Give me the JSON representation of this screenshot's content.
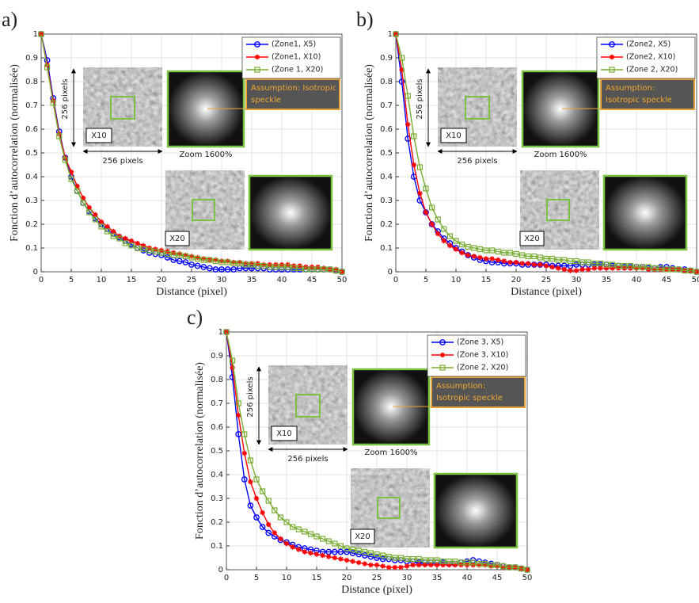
{
  "chart_data": [
    {
      "type": "line",
      "label": "a)",
      "xlabel": "Distance (pixel)",
      "ylabel": "Fonction d’autocorrelation (normalisée)",
      "xlim": [
        0,
        50
      ],
      "ylim": [
        0,
        1
      ],
      "xticks": [
        0,
        5,
        10,
        15,
        20,
        25,
        30,
        35,
        40,
        45,
        50
      ],
      "yticks": [
        0,
        0.1,
        0.2,
        0.3,
        0.4,
        0.5,
        0.6,
        0.7,
        0.8,
        0.9,
        1
      ],
      "grid": true,
      "legend": "upper right",
      "x": [
        0,
        1,
        2,
        3,
        4,
        5,
        6,
        7,
        8,
        9,
        10,
        11,
        12,
        13,
        14,
        15,
        16,
        17,
        18,
        19,
        20,
        21,
        22,
        23,
        24,
        25,
        26,
        27,
        28,
        29,
        30,
        31,
        32,
        33,
        34,
        35,
        36,
        37,
        38,
        39,
        40,
        41,
        42,
        43,
        44,
        45,
        46,
        47,
        48,
        49,
        50
      ],
      "series": [
        {
          "name": "(Zone1, X5)",
          "color": "#0000ff",
          "marker": "circle",
          "values": [
            1,
            0.89,
            0.73,
            0.59,
            0.48,
            0.4,
            0.34,
            0.29,
            0.255,
            0.225,
            0.2,
            0.18,
            0.16,
            0.145,
            0.13,
            0.115,
            0.1,
            0.09,
            0.08,
            0.075,
            0.07,
            0.06,
            0.05,
            0.045,
            0.04,
            0.03,
            0.025,
            0.02,
            0.015,
            0.01,
            0.01,
            0.01,
            0.01,
            0.015,
            0.015,
            0.015,
            0.015,
            0.015,
            0.01,
            0.01,
            0.01,
            0.01,
            0.01,
            0.01,
            0.01,
            0.01,
            0.01,
            0.01,
            0.01,
            0.005,
            0
          ]
        },
        {
          "name": "(Zone1, X10)",
          "color": "#ff0000",
          "marker": "asterisk",
          "values": [
            1,
            0.87,
            0.72,
            0.58,
            0.48,
            0.42,
            0.36,
            0.31,
            0.27,
            0.24,
            0.21,
            0.19,
            0.17,
            0.15,
            0.14,
            0.13,
            0.12,
            0.11,
            0.1,
            0.095,
            0.09,
            0.085,
            0.08,
            0.075,
            0.07,
            0.065,
            0.06,
            0.055,
            0.05,
            0.05,
            0.045,
            0.045,
            0.04,
            0.04,
            0.035,
            0.035,
            0.035,
            0.03,
            0.03,
            0.03,
            0.03,
            0.03,
            0.025,
            0.025,
            0.02,
            0.02,
            0.02,
            0.015,
            0.01,
            0.01,
            0
          ]
        },
        {
          "name": "(Zone 1, X20)",
          "color": "#77ac30",
          "marker": "square",
          "values": [
            1,
            0.86,
            0.71,
            0.57,
            0.47,
            0.39,
            0.34,
            0.29,
            0.25,
            0.22,
            0.19,
            0.17,
            0.15,
            0.14,
            0.12,
            0.11,
            0.1,
            0.095,
            0.09,
            0.085,
            0.08,
            0.075,
            0.07,
            0.07,
            0.065,
            0.06,
            0.055,
            0.05,
            0.05,
            0.045,
            0.04,
            0.04,
            0.035,
            0.035,
            0.03,
            0.03,
            0.025,
            0.025,
            0.02,
            0.02,
            0.02,
            0.02,
            0.015,
            0.015,
            0.01,
            0.01,
            0.01,
            0.01,
            0.01,
            0.005,
            0
          ]
        }
      ],
      "annotations": {
        "scale_vertical": "256 pixels",
        "scale_horizontal": "256 pixels",
        "mag_1": "X10",
        "mag_2": "X20",
        "zoom": "Zoom 1600%",
        "assumption": [
          "Assumption: Isotropic",
          "speckle"
        ]
      }
    },
    {
      "type": "line",
      "label": "b)",
      "xlabel": "Distance (pixel)",
      "ylabel": "Fonction d’autocorrelation (normalisée)",
      "xlim": [
        0,
        50
      ],
      "ylim": [
        0,
        1
      ],
      "xticks": [
        0,
        5,
        10,
        15,
        20,
        25,
        30,
        35,
        40,
        45,
        50
      ],
      "yticks": [
        0,
        0.1,
        0.2,
        0.3,
        0.4,
        0.5,
        0.6,
        0.7,
        0.8,
        0.9,
        1
      ],
      "grid": true,
      "legend": "upper right",
      "x": [
        0,
        1,
        2,
        3,
        4,
        5,
        6,
        7,
        8,
        9,
        10,
        11,
        12,
        13,
        14,
        15,
        16,
        17,
        18,
        19,
        20,
        21,
        22,
        23,
        24,
        25,
        26,
        27,
        28,
        29,
        30,
        31,
        32,
        33,
        34,
        35,
        36,
        37,
        38,
        39,
        40,
        41,
        42,
        43,
        44,
        45,
        46,
        47,
        48,
        49,
        50
      ],
      "series": [
        {
          "name": "(Zone2, X5)",
          "color": "#0000ff",
          "marker": "circle",
          "values": [
            1,
            0.8,
            0.56,
            0.4,
            0.3,
            0.25,
            0.2,
            0.17,
            0.14,
            0.12,
            0.1,
            0.085,
            0.07,
            0.06,
            0.05,
            0.045,
            0.04,
            0.04,
            0.035,
            0.035,
            0.035,
            0.03,
            0.03,
            0.03,
            0.03,
            0.03,
            0.025,
            0.025,
            0.025,
            0.025,
            0.03,
            0.03,
            0.03,
            0.03,
            0.03,
            0.03,
            0.025,
            0.025,
            0.02,
            0.02,
            0.02,
            0.02,
            0.015,
            0.015,
            0.02,
            0.02,
            0.015,
            0.01,
            0.01,
            0.005,
            0
          ]
        },
        {
          "name": "(Zone2, X10)",
          "color": "#ff0000",
          "marker": "asterisk",
          "values": [
            1,
            0.85,
            0.62,
            0.45,
            0.33,
            0.25,
            0.2,
            0.16,
            0.13,
            0.11,
            0.095,
            0.08,
            0.07,
            0.065,
            0.06,
            0.055,
            0.055,
            0.05,
            0.045,
            0.04,
            0.04,
            0.035,
            0.035,
            0.03,
            0.03,
            0.025,
            0.02,
            0.015,
            0.01,
            0.005,
            0.005,
            0.01,
            0.01,
            0.015,
            0.015,
            0.015,
            0.015,
            0.015,
            0.015,
            0.015,
            0.015,
            0.015,
            0.01,
            0.01,
            0.01,
            0.01,
            0.01,
            0.01,
            0.005,
            0.005,
            0
          ]
        },
        {
          "name": "(Zone 2, X20)",
          "color": "#77ac30",
          "marker": "square",
          "values": [
            1,
            0.9,
            0.74,
            0.57,
            0.44,
            0.35,
            0.27,
            0.22,
            0.18,
            0.15,
            0.13,
            0.115,
            0.105,
            0.1,
            0.095,
            0.09,
            0.09,
            0.085,
            0.08,
            0.08,
            0.075,
            0.07,
            0.065,
            0.065,
            0.06,
            0.055,
            0.055,
            0.05,
            0.05,
            0.045,
            0.045,
            0.04,
            0.04,
            0.035,
            0.035,
            0.03,
            0.03,
            0.025,
            0.025,
            0.025,
            0.02,
            0.02,
            0.02,
            0.015,
            0.015,
            0.01,
            0.01,
            0.01,
            0.005,
            0.005,
            0
          ]
        }
      ],
      "annotations": {
        "scale_vertical": "256 pixels",
        "scale_horizontal": "256 pixels",
        "mag_1": "X10",
        "mag_2": "X20",
        "zoom": "Zoom 1600%",
        "assumption": [
          "Assumption:",
          "Isotropic speckle"
        ]
      }
    },
    {
      "type": "line",
      "label": "c)",
      "xlabel": "Distance (pixel)",
      "ylabel": "Fonction d’autocorrelation (normalisée)",
      "xlim": [
        0,
        50
      ],
      "ylim": [
        0,
        1
      ],
      "xticks": [
        0,
        5,
        10,
        15,
        20,
        25,
        30,
        35,
        40,
        45,
        50
      ],
      "yticks": [
        0,
        0.1,
        0.2,
        0.3,
        0.4,
        0.5,
        0.6,
        0.7,
        0.8,
        0.9,
        1
      ],
      "grid": true,
      "legend": "upper right",
      "x": [
        0,
        1,
        2,
        3,
        4,
        5,
        6,
        7,
        8,
        9,
        10,
        11,
        12,
        13,
        14,
        15,
        16,
        17,
        18,
        19,
        20,
        21,
        22,
        23,
        24,
        25,
        26,
        27,
        28,
        29,
        30,
        31,
        32,
        33,
        34,
        35,
        36,
        37,
        38,
        39,
        40,
        41,
        42,
        43,
        44,
        45,
        46,
        47,
        48,
        49,
        50
      ],
      "series": [
        {
          "name": "(Zone 3, X5)",
          "color": "#0000ff",
          "marker": "circle",
          "values": [
            1,
            0.81,
            0.57,
            0.38,
            0.27,
            0.22,
            0.18,
            0.155,
            0.14,
            0.125,
            0.115,
            0.105,
            0.095,
            0.09,
            0.085,
            0.08,
            0.075,
            0.075,
            0.075,
            0.075,
            0.075,
            0.07,
            0.065,
            0.06,
            0.055,
            0.05,
            0.045,
            0.045,
            0.04,
            0.04,
            0.035,
            0.035,
            0.03,
            0.03,
            0.03,
            0.03,
            0.03,
            0.025,
            0.025,
            0.03,
            0.035,
            0.04,
            0.035,
            0.03,
            0.025,
            0.02,
            0.015,
            0.01,
            0.01,
            0.005,
            0
          ]
        },
        {
          "name": "(Zone 3, X10)",
          "color": "#ff0000",
          "marker": "asterisk",
          "values": [
            1,
            0.85,
            0.65,
            0.49,
            0.37,
            0.3,
            0.24,
            0.19,
            0.155,
            0.13,
            0.11,
            0.095,
            0.085,
            0.075,
            0.07,
            0.065,
            0.06,
            0.055,
            0.05,
            0.045,
            0.04,
            0.035,
            0.03,
            0.025,
            0.02,
            0.02,
            0.015,
            0.01,
            0.01,
            0.01,
            0.015,
            0.02,
            0.02,
            0.02,
            0.02,
            0.02,
            0.02,
            0.02,
            0.02,
            0.02,
            0.02,
            0.02,
            0.02,
            0.02,
            0.015,
            0.015,
            0.01,
            0.01,
            0.01,
            0.005,
            0
          ]
        },
        {
          "name": "(Zone 2, X20)",
          "color": "#77ac30",
          "marker": "square",
          "values": [
            1,
            0.88,
            0.7,
            0.57,
            0.46,
            0.38,
            0.33,
            0.29,
            0.25,
            0.22,
            0.2,
            0.18,
            0.17,
            0.16,
            0.15,
            0.14,
            0.13,
            0.12,
            0.11,
            0.1,
            0.09,
            0.085,
            0.08,
            0.075,
            0.07,
            0.065,
            0.06,
            0.055,
            0.05,
            0.05,
            0.045,
            0.045,
            0.045,
            0.04,
            0.04,
            0.04,
            0.035,
            0.035,
            0.035,
            0.03,
            0.03,
            0.03,
            0.025,
            0.025,
            0.02,
            0.02,
            0.015,
            0.01,
            0.01,
            0.005,
            0
          ]
        }
      ],
      "annotations": {
        "scale_vertical": "256 pixels",
        "scale_horizontal": "256 pixels",
        "mag_1": "X10",
        "mag_2": "X20",
        "zoom": "Zoom 1600%",
        "assumption": [
          "Assumption:",
          "Isotropic speckle"
        ]
      }
    }
  ]
}
